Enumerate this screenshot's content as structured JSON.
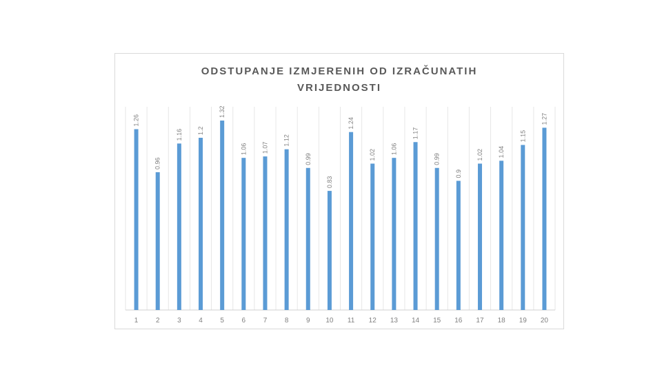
{
  "chart_data": {
    "type": "bar",
    "title_lines": [
      "ODSTUPANJE  IZMJERENIH  OD  IZRAČUNATIH",
      "VRIJEDNOSTI"
    ],
    "categories": [
      "1",
      "2",
      "3",
      "4",
      "5",
      "6",
      "7",
      "8",
      "9",
      "10",
      "11",
      "12",
      "13",
      "14",
      "15",
      "16",
      "17",
      "18",
      "19",
      "20"
    ],
    "values": [
      1.26,
      0.96,
      1.16,
      1.2,
      1.32,
      1.06,
      1.07,
      1.12,
      0.99,
      0.83,
      1.24,
      1.02,
      1.06,
      1.17,
      0.99,
      0.9,
      1.02,
      1.04,
      1.15,
      1.27
    ],
    "data_labels": [
      "1.26",
      "0.96",
      "1.16",
      "1.2",
      "1.32",
      "1.06",
      "1.07",
      "1.12",
      "0.99",
      "0.83",
      "1.24",
      "1.02",
      "1.06",
      "1.17",
      "0.99",
      "0.9",
      "1.02",
      "1.04",
      "1.15",
      "1.27"
    ],
    "ylim": [
      0,
      1.32
    ],
    "bar_color": "#5b9bd5",
    "grid": "vertical",
    "legend": "none"
  }
}
